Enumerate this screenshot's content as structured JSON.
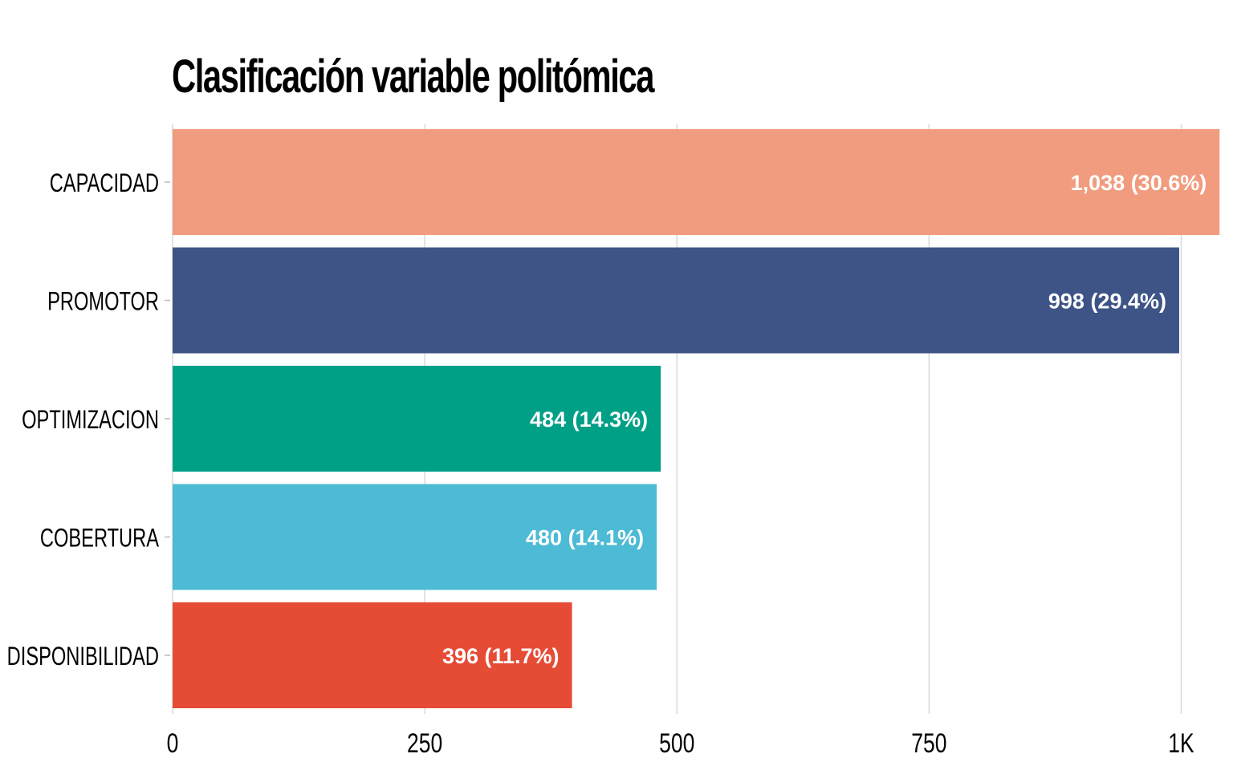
{
  "chart_data": {
    "type": "bar",
    "orientation": "horizontal",
    "title": "Clasificación variable politómica",
    "xlabel": "",
    "ylabel": "",
    "categories": [
      "CAPACIDAD",
      "PROMOTOR",
      "OPTIMIZACION",
      "COBERTURA",
      "DISPONIBILIDAD"
    ],
    "values": [
      1038,
      998,
      484,
      480,
      396
    ],
    "data_labels": [
      "1,038 (30.6%)",
      "998 (29.4%)",
      "484 (14.3%)",
      "480 (14.1%)",
      "396 (11.7%)"
    ],
    "colors": [
      "#F19C7F",
      "#3E5487",
      "#00A087",
      "#4DBBD5",
      "#E64B35"
    ],
    "xlim": [
      0,
      1000
    ],
    "x_ticks": [
      0,
      250,
      500,
      750,
      1000
    ],
    "x_tick_labels": [
      "0",
      "250",
      "500",
      "750",
      "1K"
    ],
    "grid": "vertical",
    "legend": "none",
    "grid_color": "#D9D9D9"
  }
}
